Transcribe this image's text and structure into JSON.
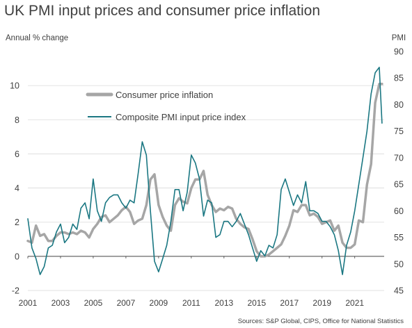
{
  "title": "UK PMI input prices and consumer price inflation",
  "source": "Sources: S&P Global, CIPS, Office for National Statistics",
  "chart_data": {
    "type": "line",
    "y_left_label": "Annual % change",
    "y_right_label": "PMI",
    "y_left_lim": [
      -2,
      12
    ],
    "y_left_ticks": [
      -2,
      0,
      2,
      4,
      6,
      8,
      10
    ],
    "y_right_lim": [
      45,
      90
    ],
    "y_right_ticks": [
      45,
      50,
      55,
      60,
      65,
      70,
      75,
      80,
      85,
      90
    ],
    "x_lim": [
      2001.0,
      2022.8
    ],
    "x_ticks": [
      "2001",
      "2003",
      "2005",
      "2007",
      "2009",
      "2011",
      "2013",
      "2015",
      "2017",
      "2019",
      "2021"
    ],
    "gridlines": "horizontal",
    "legend_position": "upper-middle",
    "colors": {
      "cpi": "#a6a6a6",
      "pmi": "#1a7782",
      "grid": "#d9d9d9",
      "zero_line": "#404040"
    },
    "series": [
      {
        "name": "Consumer price inflation",
        "axis": "left",
        "x": [
          2001.0,
          2001.25,
          2001.5,
          2001.75,
          2002.0,
          2002.25,
          2002.5,
          2002.75,
          2003.0,
          2003.25,
          2003.5,
          2003.75,
          2004.0,
          2004.25,
          2004.5,
          2004.75,
          2005.0,
          2005.25,
          2005.5,
          2005.75,
          2006.0,
          2006.25,
          2006.5,
          2006.75,
          2007.0,
          2007.25,
          2007.5,
          2007.75,
          2008.0,
          2008.25,
          2008.5,
          2008.75,
          2009.0,
          2009.25,
          2009.5,
          2009.75,
          2010.0,
          2010.25,
          2010.5,
          2010.75,
          2011.0,
          2011.25,
          2011.5,
          2011.75,
          2012.0,
          2012.25,
          2012.5,
          2012.75,
          2013.0,
          2013.25,
          2013.5,
          2013.75,
          2014.0,
          2014.25,
          2014.5,
          2014.75,
          2015.0,
          2015.25,
          2015.5,
          2015.75,
          2016.0,
          2016.25,
          2016.5,
          2016.75,
          2017.0,
          2017.25,
          2017.5,
          2017.75,
          2018.0,
          2018.25,
          2018.5,
          2018.75,
          2019.0,
          2019.25,
          2019.5,
          2019.75,
          2020.0,
          2020.25,
          2020.5,
          2020.75,
          2021.0,
          2021.25,
          2021.5,
          2021.75,
          2022.0,
          2022.25,
          2022.5,
          2022.67
        ],
        "values": [
          0.9,
          0.8,
          1.8,
          1.2,
          1.3,
          0.9,
          0.9,
          1.2,
          1.4,
          1.4,
          1.3,
          1.4,
          1.3,
          1.5,
          1.4,
          1.1,
          1.6,
          1.9,
          2.3,
          2.4,
          2.0,
          2.2,
          2.4,
          2.7,
          2.9,
          2.6,
          1.9,
          2.1,
          2.2,
          3.0,
          4.5,
          4.8,
          3.0,
          2.3,
          1.8,
          1.5,
          3.0,
          3.4,
          3.2,
          3.1,
          4.0,
          4.5,
          4.5,
          5.0,
          3.6,
          3.0,
          2.6,
          2.8,
          2.7,
          2.9,
          2.8,
          2.2,
          1.9,
          1.7,
          1.6,
          1.0,
          0.3,
          0.0,
          0.0,
          0.1,
          0.3,
          0.5,
          0.7,
          1.2,
          1.8,
          2.7,
          2.6,
          3.0,
          3.0,
          2.4,
          2.5,
          2.3,
          1.9,
          2.0,
          2.1,
          1.5,
          1.8,
          0.8,
          0.5,
          0.5,
          0.7,
          2.1,
          2.0,
          4.2,
          5.4,
          9.0,
          10.1,
          10.1
        ]
      },
      {
        "name": "Composite PMI input price index",
        "axis": "right",
        "x": [
          2001.0,
          2001.25,
          2001.5,
          2001.75,
          2002.0,
          2002.25,
          2002.5,
          2002.75,
          2003.0,
          2003.25,
          2003.5,
          2003.75,
          2004.0,
          2004.25,
          2004.5,
          2004.75,
          2005.0,
          2005.25,
          2005.5,
          2005.75,
          2006.0,
          2006.25,
          2006.5,
          2006.75,
          2007.0,
          2007.25,
          2007.5,
          2007.75,
          2008.0,
          2008.25,
          2008.5,
          2008.75,
          2009.0,
          2009.25,
          2009.5,
          2009.75,
          2010.0,
          2010.25,
          2010.5,
          2010.75,
          2011.0,
          2011.25,
          2011.5,
          2011.75,
          2012.0,
          2012.25,
          2012.5,
          2012.75,
          2013.0,
          2013.25,
          2013.5,
          2013.75,
          2014.0,
          2014.25,
          2014.5,
          2014.75,
          2015.0,
          2015.25,
          2015.5,
          2015.75,
          2016.0,
          2016.25,
          2016.5,
          2016.75,
          2017.0,
          2017.25,
          2017.5,
          2017.75,
          2018.0,
          2018.25,
          2018.5,
          2018.75,
          2019.0,
          2019.25,
          2019.5,
          2019.75,
          2020.0,
          2020.25,
          2020.5,
          2020.75,
          2021.0,
          2021.25,
          2021.5,
          2021.75,
          2022.0,
          2022.25,
          2022.5,
          2022.67
        ],
        "values": [
          58.5,
          53.0,
          51.0,
          48.0,
          49.5,
          53.0,
          53.5,
          56.0,
          57.5,
          54.0,
          55.0,
          57.5,
          56.5,
          60.5,
          61.5,
          58.5,
          66.0,
          60.0,
          58.0,
          61.5,
          62.5,
          63.0,
          63.0,
          61.5,
          60.5,
          62.0,
          61.5,
          67.0,
          73.0,
          70.5,
          60.0,
          50.5,
          48.5,
          51.0,
          53.5,
          58.0,
          64.0,
          64.0,
          60.0,
          63.5,
          70.5,
          69.0,
          66.0,
          59.0,
          62.0,
          61.5,
          55.0,
          55.5,
          58.0,
          58.0,
          57.0,
          58.0,
          59.5,
          57.5,
          55.5,
          53.0,
          50.5,
          52.5,
          51.5,
          53.5,
          53.0,
          55.5,
          64.0,
          66.0,
          63.5,
          61.0,
          63.0,
          61.5,
          65.5,
          60.0,
          60.0,
          59.5,
          58.0,
          58.0,
          57.0,
          55.5,
          52.5,
          48.0,
          53.5,
          56.0,
          60.0,
          65.0,
          70.0,
          75.0,
          82.0,
          86.0,
          87.0,
          76.5
        ]
      }
    ]
  }
}
